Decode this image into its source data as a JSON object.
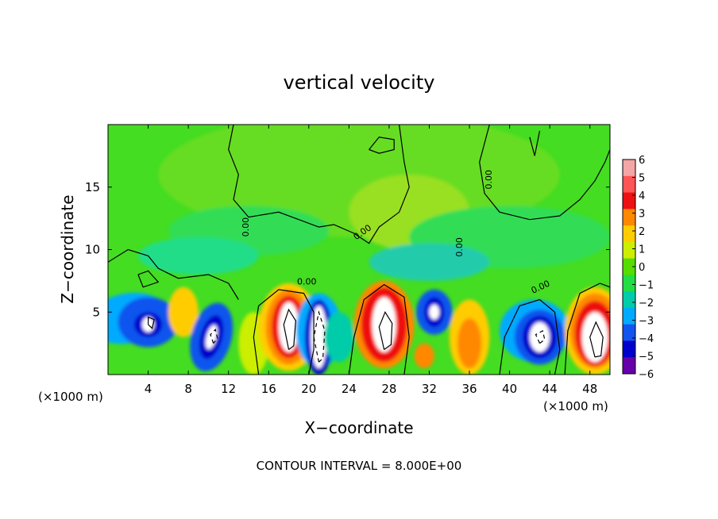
{
  "chart_data": {
    "type": "heatmap",
    "title": "vertical velocity",
    "xlabel": "X−coordinate",
    "ylabel": "Z−coordinate",
    "x_unit_label_left": "(×1000 m)",
    "x_unit_label_right": "(×1000 m)",
    "footer": "CONTOUR INTERVAL = 8.000E+00",
    "xlim": [
      0,
      50
    ],
    "ylim": [
      0,
      20
    ],
    "x_ticks": [
      4,
      8,
      12,
      16,
      20,
      24,
      28,
      32,
      36,
      40,
      44,
      48
    ],
    "y_ticks": [
      5,
      10,
      15
    ],
    "colorbar": {
      "min": -6,
      "max": 6,
      "tick_labels": [
        "6",
        "5",
        "4",
        "3",
        "2",
        "1",
        "0",
        "−1",
        "−2",
        "−3",
        "−4",
        "−5",
        "−6"
      ],
      "colors": [
        "#f4a6a6",
        "#ff5555",
        "#ee1111",
        "#ff8800",
        "#ffcc00",
        "#ccee00",
        "#55dd00",
        "#22dd44",
        "#00ccaa",
        "#00aaff",
        "#1155ee",
        "#0000cc",
        "#6600aa"
      ]
    },
    "contour_labels": [
      "0.00",
      "0.00",
      "0.00",
      "0.00",
      "0.00",
      "0.00"
    ],
    "features": [
      {
        "x": 4,
        "z": 4,
        "value": -6
      },
      {
        "x": 10,
        "z": 3,
        "value": -6
      },
      {
        "x": 18,
        "z": 4,
        "value": 6
      },
      {
        "x": 21,
        "z": 3,
        "value": -6
      },
      {
        "x": 27.5,
        "z": 4,
        "value": 6
      },
      {
        "x": 32.5,
        "z": 5,
        "value": -5
      },
      {
        "x": 36,
        "z": 3,
        "value": 3
      },
      {
        "x": 43,
        "z": 3,
        "value": -6
      },
      {
        "x": 48.5,
        "z": 3,
        "value": 6
      }
    ]
  }
}
